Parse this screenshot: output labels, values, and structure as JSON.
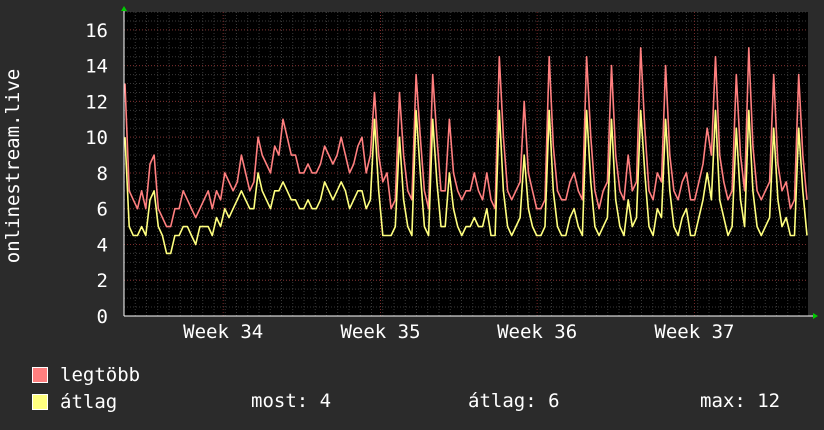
{
  "chart_data": {
    "type": "line",
    "ylabel": "onlinestream.live",
    "ylim": [
      0,
      17
    ],
    "yticks": [
      0,
      2,
      4,
      6,
      8,
      10,
      12,
      14,
      16
    ],
    "x_labels": [
      "Week 34",
      "Week 35",
      "Week 36",
      "Week 37"
    ],
    "grid": true,
    "series": [
      {
        "name": "legtöbb",
        "color": "#ff7f7f",
        "values": [
          13,
          7,
          6.5,
          6,
          7,
          6,
          8.5,
          9,
          6,
          5.5,
          5,
          5,
          6,
          6,
          7,
          6.5,
          6,
          5.5,
          6,
          6.5,
          7,
          6,
          7,
          6.5,
          8,
          7.5,
          7,
          7.5,
          9,
          8,
          7,
          7.5,
          10,
          9,
          8.5,
          8,
          9.5,
          9,
          11,
          10,
          9,
          9,
          8,
          8,
          8.5,
          8,
          8,
          8.5,
          9.5,
          9,
          8.5,
          9,
          10,
          9,
          8,
          8.5,
          9.5,
          10,
          8,
          9,
          12.5,
          9,
          7.5,
          8,
          6,
          6.5,
          12.5,
          9,
          7,
          6.5,
          13.5,
          10,
          7,
          6,
          13.5,
          10,
          7,
          7,
          11,
          8,
          7,
          6.5,
          7,
          7,
          8,
          7,
          6.5,
          8,
          6.5,
          6,
          14.5,
          10,
          7,
          6.5,
          7,
          7.5,
          12,
          8,
          7,
          6,
          6,
          6.5,
          14.5,
          9.5,
          7,
          6.5,
          6.5,
          7.5,
          8,
          7,
          6.5,
          14.5,
          10,
          7,
          6,
          7,
          7.5,
          14,
          9,
          7,
          6.5,
          9,
          7,
          7.5,
          15,
          10.5,
          7,
          6.5,
          8,
          7.5,
          14,
          9,
          7,
          6.5,
          7.5,
          8,
          6.5,
          6.5,
          7.5,
          8.5,
          10.5,
          9,
          14.5,
          9,
          7.5,
          6.5,
          7,
          13.5,
          9,
          7,
          15,
          9.5,
          7,
          6.5,
          7,
          7.5,
          13.5,
          8.5,
          7,
          7.5,
          6,
          6.5,
          13.5,
          9,
          6.5
        ]
      },
      {
        "name": "átlag",
        "color": "#ffff7f",
        "values": [
          10,
          5,
          4.5,
          4.5,
          5,
          4.5,
          6.5,
          7,
          5,
          4.5,
          3.5,
          3.5,
          4.5,
          4.5,
          5,
          5,
          4.5,
          4,
          5,
          5,
          5,
          4.5,
          5.5,
          5,
          6,
          5.5,
          6,
          6.5,
          7,
          6.5,
          6,
          6,
          8,
          7,
          6.5,
          6,
          7,
          7,
          7.5,
          7,
          6.5,
          6.5,
          6,
          6,
          6.5,
          6,
          6,
          6.5,
          7.5,
          7,
          6.5,
          7,
          7.5,
          7,
          6,
          6.5,
          7,
          7,
          6,
          6.5,
          11,
          7,
          4.5,
          4.5,
          4.5,
          5,
          10,
          6.5,
          5,
          4.5,
          11.5,
          8,
          5,
          4.5,
          11,
          7.5,
          5,
          5,
          8,
          6,
          5,
          4.5,
          5,
          5,
          5.5,
          5,
          5,
          6,
          4.5,
          4.5,
          11.5,
          7,
          5,
          4.5,
          5,
          5.5,
          9,
          6,
          5,
          4.5,
          4.5,
          5,
          11.5,
          7,
          5,
          4.5,
          4.5,
          5.5,
          6,
          5,
          4.5,
          11.5,
          7.5,
          5,
          4.5,
          5,
          5.5,
          11,
          6.5,
          5,
          4.5,
          6.5,
          5,
          5.5,
          11.5,
          8,
          5,
          4.5,
          6,
          5.5,
          11,
          7,
          5,
          4.5,
          5.5,
          6,
          4.5,
          4.5,
          5.5,
          6.5,
          8,
          6.5,
          11.5,
          6.5,
          5.5,
          4.5,
          5,
          10.5,
          6.5,
          5,
          11.5,
          7,
          5,
          4.5,
          5,
          5.5,
          10.5,
          6.5,
          5,
          5.5,
          4.5,
          4.5,
          10.5,
          7,
          4.5
        ]
      }
    ]
  },
  "legend": {
    "max_label": "legtöbb",
    "avg_label": "átlag"
  },
  "stats": {
    "now": "most: 4",
    "avg": "átlag: 6",
    "max": "max: 12"
  }
}
